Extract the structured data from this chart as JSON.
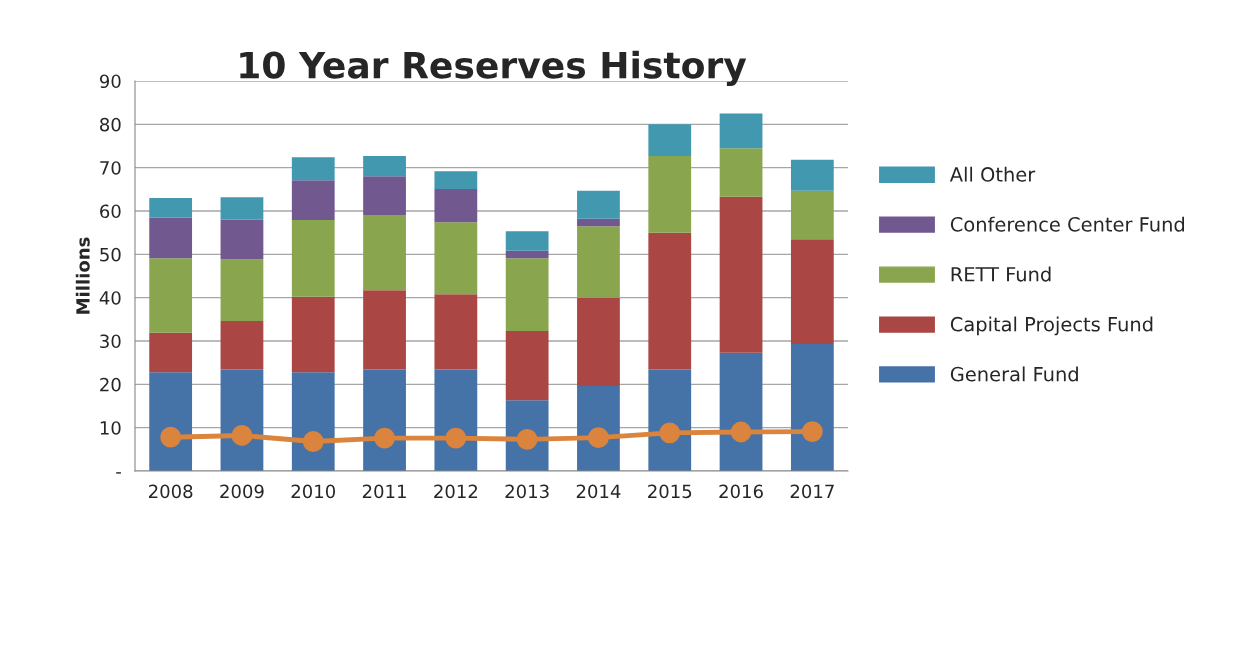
{
  "chart_data": {
    "type": "bar",
    "title": "10 Year Reserves History",
    "ylabel": "Millions",
    "categories": [
      "2008",
      "2009",
      "2010",
      "2011",
      "2012",
      "2013",
      "2014",
      "2015",
      "2016",
      "2017"
    ],
    "stacked": true,
    "series": [
      {
        "name": "General Fund",
        "color": "#4572a7",
        "values": [
          22.8,
          23.4,
          22.8,
          23.4,
          23.4,
          16.3,
          19.6,
          23.4,
          27.3,
          29.3
        ]
      },
      {
        "name": "Capital Projects Fund",
        "color": "#aa4643",
        "values": [
          9.1,
          11.2,
          17.4,
          18.3,
          17.4,
          16.0,
          20.3,
          31.6,
          36.0,
          24.2
        ]
      },
      {
        "name": "RETT Fund",
        "color": "#89a54e",
        "values": [
          17.2,
          14.2,
          17.7,
          17.4,
          16.6,
          16.8,
          16.6,
          17.7,
          11.2,
          11.2
        ]
      },
      {
        "name": "Conference Center Fund",
        "color": "#71588f",
        "values": [
          9.4,
          9.2,
          9.2,
          8.9,
          7.7,
          1.7,
          1.7,
          0,
          0,
          0
        ]
      },
      {
        "name": "All Other",
        "color": "#4198af",
        "values": [
          4.5,
          5.2,
          5.3,
          4.7,
          4.1,
          4.5,
          6.5,
          7.3,
          8.0,
          7.1
        ]
      },
      {
        "type": "line",
        "color": "#db843d",
        "marker": "circle",
        "values": [
          7.8,
          8.2,
          6.8,
          7.6,
          7.6,
          7.3,
          7.7,
          8.8,
          9.0,
          9.1
        ]
      }
    ],
    "ylim": [
      0,
      90
    ],
    "yticks": [
      {
        "value": 0,
        "label": "-"
      },
      10,
      20,
      30,
      40,
      50,
      60,
      70,
      80,
      90
    ],
    "grid": "y",
    "legend": "right"
  }
}
